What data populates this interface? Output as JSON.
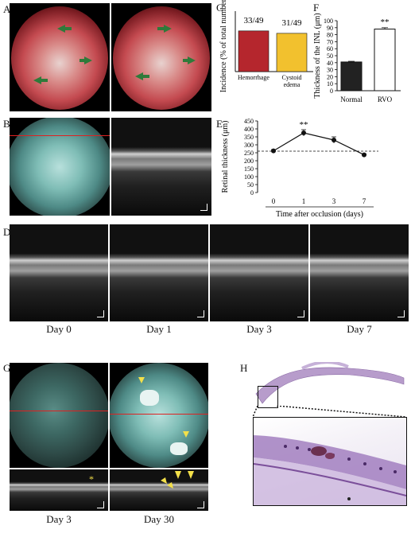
{
  "panels": {
    "A": "A",
    "B": "B",
    "C": "C",
    "D": "D",
    "E": "E",
    "F": "F",
    "G": "G",
    "H": "H"
  },
  "captions_D": [
    "Day 0",
    "Day 1",
    "Day 3",
    "Day 7"
  ],
  "captions_G": [
    "Day 3",
    "Day 30"
  ],
  "colors": {
    "hemorrhage": "#b5262d",
    "cystoid": "#f2c12e",
    "normal": "#222222",
    "rvo": "#ffffff",
    "arrow": "#2f7a3a",
    "arrowhead_yellow": "#f3e04a"
  },
  "chart_data": [
    {
      "id": "C",
      "type": "bar",
      "categories": [
        "Hemorrhage",
        "Cystoid edema"
      ],
      "category_lines": [
        [
          "Hemorrhage"
        ],
        [
          "Cystoid",
          "edema"
        ]
      ],
      "values": [
        67.3,
        63.3
      ],
      "data_labels": [
        "33/49",
        "31/49"
      ],
      "ylabel": "Incidence  (% of total number)",
      "ylim": [
        0,
        100
      ]
    },
    {
      "id": "E",
      "type": "line",
      "x": [
        0,
        1,
        3,
        7
      ],
      "x_ticks": [
        "0",
        "1",
        "3",
        "7"
      ],
      "values": [
        262,
        375,
        330,
        237
      ],
      "errors": [
        8,
        20,
        20,
        6
      ],
      "baseline": 260,
      "annotation": "**",
      "annotation_x": 1,
      "ylabel": "Retinal thickness  (μm)",
      "xlabel": "Time after occlusion (days)",
      "ylim": [
        0,
        450
      ],
      "yticks": [
        "0",
        "50",
        "100",
        "150",
        "200",
        "250",
        "300",
        "350",
        "400",
        "450"
      ]
    },
    {
      "id": "F",
      "type": "bar",
      "categories": [
        "Normal",
        "RVO"
      ],
      "values": [
        41,
        88
      ],
      "errors": [
        1,
        2
      ],
      "annotation": "**",
      "ylabel": "Thickness of the INL (μm)",
      "ylim": [
        0,
        100
      ],
      "yticks": [
        "0",
        "10",
        "20",
        "30",
        "40",
        "50",
        "60",
        "70",
        "80",
        "90",
        "100"
      ]
    }
  ]
}
